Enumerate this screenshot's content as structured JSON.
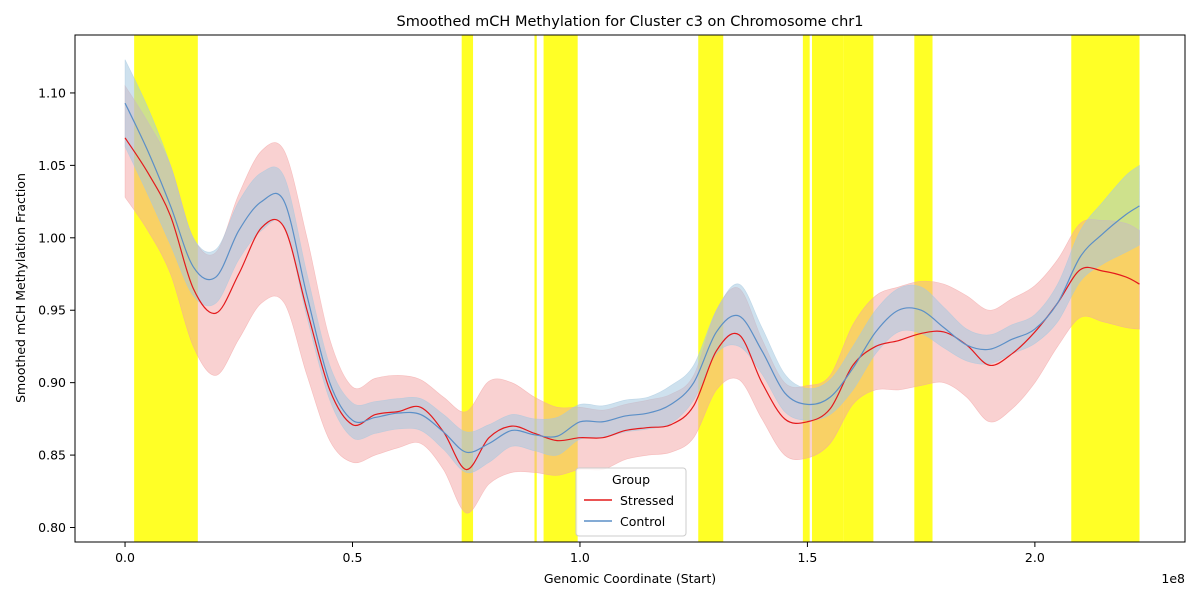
{
  "chart_data": {
    "type": "line",
    "title": "Smoothed mCH Methylation for Cluster c3 on Chromosome chr1",
    "xlabel": "Genomic Coordinate (Start)",
    "ylabel": "Smoothed mCH Methylation Fraction",
    "x_offset_label": "1e8",
    "xlim": [
      -0.11,
      2.33
    ],
    "ylim": [
      0.79,
      1.14
    ],
    "x_ticks": [
      {
        "value": 0.0,
        "label": "0.0"
      },
      {
        "value": 0.5,
        "label": "0.5"
      },
      {
        "value": 1.0,
        "label": "1.0"
      },
      {
        "value": 1.5,
        "label": "1.5"
      },
      {
        "value": 2.0,
        "label": "2.0"
      }
    ],
    "y_ticks": [
      {
        "value": 0.8,
        "label": "0.80"
      },
      {
        "value": 0.85,
        "label": "0.85"
      },
      {
        "value": 0.9,
        "label": "0.90"
      },
      {
        "value": 0.95,
        "label": "0.95"
      },
      {
        "value": 1.0,
        "label": "1.00"
      },
      {
        "value": 1.05,
        "label": "1.05"
      },
      {
        "value": 1.1,
        "label": "1.10"
      }
    ],
    "grid": false,
    "legend": {
      "title": "Group",
      "position": "lower-center"
    },
    "highlight_regions": [
      [
        0.02,
        0.16
      ],
      [
        0.74,
        0.765
      ],
      [
        0.9,
        0.905
      ],
      [
        0.92,
        0.995
      ],
      [
        1.26,
        1.315
      ],
      [
        1.49,
        1.505
      ],
      [
        1.51,
        1.58
      ],
      [
        1.58,
        1.645
      ],
      [
        1.735,
        1.775
      ],
      [
        2.08,
        2.23
      ]
    ],
    "highlight_color": "#ffff00",
    "series": [
      {
        "name": "Stressed",
        "color": "#e41a1c",
        "band_color": "#f4a3a3",
        "x": [
          0.0,
          0.05,
          0.1,
          0.15,
          0.2,
          0.25,
          0.3,
          0.35,
          0.4,
          0.45,
          0.5,
          0.55,
          0.6,
          0.65,
          0.7,
          0.75,
          0.8,
          0.85,
          0.9,
          0.95,
          1.0,
          1.05,
          1.1,
          1.15,
          1.2,
          1.25,
          1.3,
          1.35,
          1.4,
          1.45,
          1.5,
          1.55,
          1.6,
          1.65,
          1.7,
          1.75,
          1.8,
          1.85,
          1.9,
          1.95,
          2.0,
          2.05,
          2.1,
          2.15,
          2.2,
          2.23
        ],
        "values": [
          1.069,
          1.045,
          1.015,
          0.965,
          0.948,
          0.975,
          1.007,
          1.007,
          0.95,
          0.895,
          0.871,
          0.878,
          0.88,
          0.883,
          0.866,
          0.84,
          0.862,
          0.87,
          0.865,
          0.86,
          0.862,
          0.862,
          0.867,
          0.869,
          0.871,
          0.884,
          0.922,
          0.933,
          0.9,
          0.875,
          0.873,
          0.882,
          0.912,
          0.925,
          0.929,
          0.934,
          0.935,
          0.926,
          0.912,
          0.92,
          0.935,
          0.955,
          0.978,
          0.977,
          0.973,
          0.968
        ],
        "upper": [
          1.105,
          1.08,
          1.05,
          1.0,
          0.99,
          1.03,
          1.06,
          1.06,
          1.0,
          0.93,
          0.897,
          0.903,
          0.905,
          0.902,
          0.89,
          0.88,
          0.901,
          0.9,
          0.89,
          0.883,
          0.883,
          0.881,
          0.885,
          0.888,
          0.892,
          0.905,
          0.95,
          0.965,
          0.93,
          0.9,
          0.898,
          0.905,
          0.94,
          0.96,
          0.966,
          0.97,
          0.968,
          0.96,
          0.95,
          0.958,
          0.967,
          0.985,
          1.01,
          1.012,
          1.01,
          1.005
        ],
        "lower": [
          1.028,
          1.005,
          0.975,
          0.925,
          0.905,
          0.93,
          0.955,
          0.955,
          0.905,
          0.86,
          0.845,
          0.85,
          0.855,
          0.858,
          0.84,
          0.81,
          0.83,
          0.838,
          0.838,
          0.836,
          0.84,
          0.84,
          0.847,
          0.85,
          0.852,
          0.862,
          0.895,
          0.902,
          0.875,
          0.85,
          0.848,
          0.858,
          0.885,
          0.895,
          0.895,
          0.898,
          0.9,
          0.89,
          0.873,
          0.882,
          0.9,
          0.925,
          0.945,
          0.942,
          0.938,
          0.937
        ]
      },
      {
        "name": "Control",
        "color": "#5b8fc7",
        "band_color": "#a6c8e0",
        "x": [
          0.0,
          0.05,
          0.1,
          0.15,
          0.2,
          0.25,
          0.3,
          0.35,
          0.4,
          0.45,
          0.5,
          0.55,
          0.6,
          0.65,
          0.7,
          0.75,
          0.8,
          0.85,
          0.9,
          0.95,
          1.0,
          1.05,
          1.1,
          1.15,
          1.2,
          1.25,
          1.3,
          1.35,
          1.4,
          1.45,
          1.5,
          1.55,
          1.6,
          1.65,
          1.7,
          1.75,
          1.8,
          1.85,
          1.9,
          1.95,
          2.0,
          2.05,
          2.1,
          2.15,
          2.2,
          2.23
        ],
        "values": [
          1.093,
          1.06,
          1.022,
          0.98,
          0.973,
          1.005,
          1.025,
          1.025,
          0.96,
          0.9,
          0.874,
          0.876,
          0.879,
          0.878,
          0.866,
          0.852,
          0.858,
          0.867,
          0.864,
          0.863,
          0.873,
          0.873,
          0.877,
          0.879,
          0.885,
          0.9,
          0.935,
          0.946,
          0.922,
          0.893,
          0.885,
          0.89,
          0.91,
          0.935,
          0.95,
          0.95,
          0.938,
          0.926,
          0.923,
          0.93,
          0.937,
          0.955,
          0.987,
          1.003,
          1.016,
          1.022
        ],
        "upper": [
          1.123,
          1.09,
          1.05,
          1.0,
          0.992,
          1.025,
          1.045,
          1.042,
          0.975,
          0.912,
          0.886,
          0.887,
          0.889,
          0.889,
          0.878,
          0.866,
          0.871,
          0.878,
          0.875,
          0.876,
          0.885,
          0.884,
          0.888,
          0.89,
          0.898,
          0.912,
          0.95,
          0.968,
          0.938,
          0.906,
          0.896,
          0.902,
          0.925,
          0.95,
          0.965,
          0.966,
          0.952,
          0.937,
          0.933,
          0.94,
          0.947,
          0.968,
          1.005,
          1.025,
          1.043,
          1.05
        ],
        "lower": [
          1.063,
          1.03,
          0.995,
          0.96,
          0.955,
          0.985,
          1.005,
          1.008,
          0.945,
          0.888,
          0.862,
          0.865,
          0.868,
          0.867,
          0.854,
          0.838,
          0.845,
          0.856,
          0.853,
          0.85,
          0.861,
          0.862,
          0.866,
          0.868,
          0.872,
          0.888,
          0.92,
          0.925,
          0.906,
          0.88,
          0.874,
          0.878,
          0.895,
          0.92,
          0.935,
          0.934,
          0.924,
          0.915,
          0.913,
          0.92,
          0.927,
          0.942,
          0.97,
          0.982,
          0.99,
          0.995
        ]
      }
    ]
  }
}
